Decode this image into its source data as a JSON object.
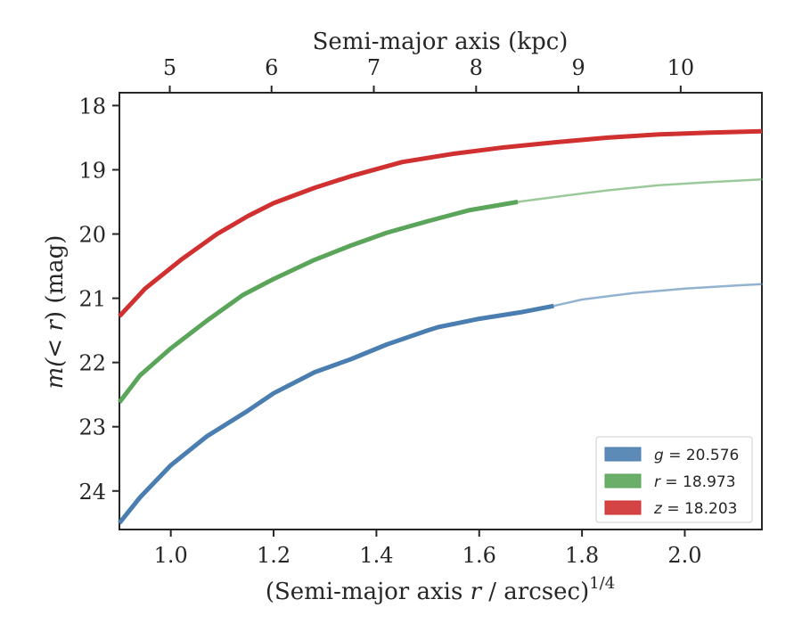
{
  "chart_data": {
    "type": "line",
    "xlabel_prefix": "(Semi-major axis ",
    "xlabel_var": "r",
    "xlabel_suffix": " / arcsec)",
    "xlabel_exp": "1/4",
    "ylabel_prefix": "m(",
    "ylabel_lt": "<",
    "ylabel_var": "r",
    "ylabel_suffix": ") (mag)",
    "top_xlabel": "Semi-major axis (kpc)",
    "xlim": [
      0.9,
      2.15
    ],
    "ylim": [
      24.6,
      17.8
    ],
    "y_inverted": true,
    "x_ticks": [
      1.0,
      1.2,
      1.4,
      1.6,
      1.8,
      2.0
    ],
    "x_tick_labels": [
      "1.0",
      "1.2",
      "1.4",
      "1.6",
      "1.8",
      "2.0"
    ],
    "y_ticks": [
      18,
      19,
      20,
      21,
      22,
      23,
      24
    ],
    "y_tick_labels": [
      "18",
      "19",
      "20",
      "21",
      "22",
      "23",
      "24"
    ],
    "top_ticks_kpc": [
      5,
      6,
      7,
      8,
      9,
      10
    ],
    "top_tick_labels": [
      "5",
      "6",
      "7",
      "8",
      "9",
      "10"
    ],
    "top_tick_x_positions": [
      0.998,
      1.196,
      1.395,
      1.594,
      1.793,
      1.992
    ],
    "grid": false,
    "legend_position": "lower-right",
    "series": [
      {
        "name_var": "g",
        "name_value": " = 20.576",
        "color": "#4a7eb0",
        "solid": {
          "x": [
            0.9,
            0.94,
            1.0,
            1.07,
            1.15,
            1.2,
            1.28,
            1.35,
            1.42,
            1.5,
            1.52,
            1.6,
            1.68,
            1.745
          ],
          "y": [
            24.5,
            24.1,
            23.6,
            23.15,
            22.75,
            22.48,
            22.15,
            21.95,
            21.72,
            21.5,
            21.45,
            21.32,
            21.22,
            21.12
          ]
        },
        "faint": {
          "x": [
            1.745,
            1.8,
            1.9,
            2.0,
            2.1,
            2.15
          ],
          "y": [
            21.12,
            21.02,
            20.92,
            20.85,
            20.8,
            20.78
          ]
        }
      },
      {
        "name_var": "r",
        "name_value": " = 18.973",
        "color": "#5aa55a",
        "solid": {
          "x": [
            0.9,
            0.94,
            1.0,
            1.07,
            1.14,
            1.2,
            1.28,
            1.35,
            1.42,
            1.5,
            1.58,
            1.675
          ],
          "y": [
            22.62,
            22.2,
            21.78,
            21.35,
            20.95,
            20.7,
            20.4,
            20.18,
            19.98,
            19.8,
            19.63,
            19.5
          ]
        },
        "faint": {
          "x": [
            1.675,
            1.75,
            1.85,
            1.95,
            2.05,
            2.15
          ],
          "y": [
            19.5,
            19.42,
            19.32,
            19.24,
            19.19,
            19.15
          ]
        }
      },
      {
        "name_var": "z",
        "name_value": " = 18.203",
        "color": "#d03030",
        "solid": {
          "x": [
            0.9,
            0.95,
            1.02,
            1.09,
            1.15,
            1.2,
            1.28,
            1.35,
            1.45,
            1.55,
            1.65,
            1.75,
            1.85,
            1.95,
            2.05,
            2.15
          ],
          "y": [
            21.28,
            20.85,
            20.4,
            20.0,
            19.72,
            19.52,
            19.28,
            19.1,
            18.88,
            18.75,
            18.65,
            18.57,
            18.5,
            18.45,
            18.42,
            18.4
          ]
        }
      }
    ]
  }
}
